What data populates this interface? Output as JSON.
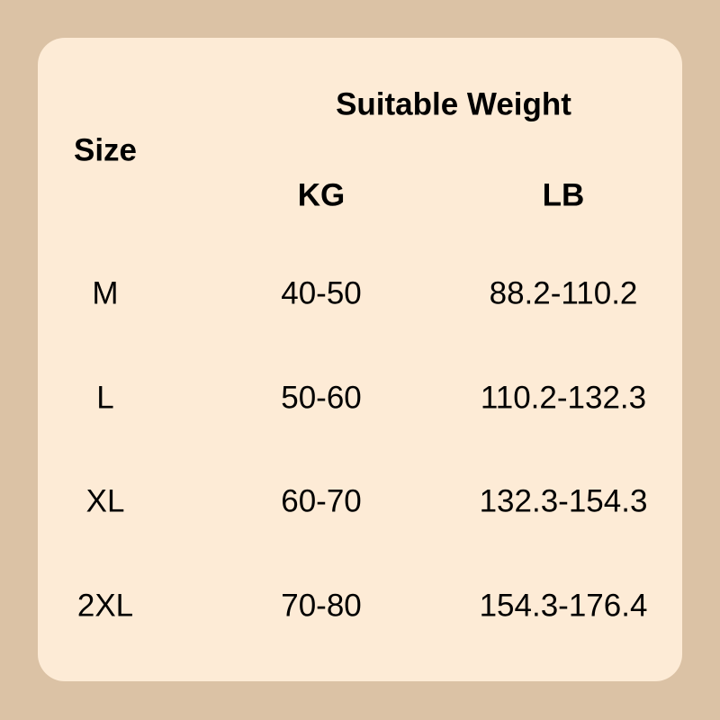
{
  "colors": {
    "background": "#dbc2a5",
    "card": "#fdebd6",
    "text": "#000000"
  },
  "header": {
    "size": "Size",
    "suitable_weight": "Suitable Weight",
    "kg": "KG",
    "lb": "LB"
  },
  "rows": [
    {
      "size": "M",
      "kg": "40-50",
      "lb": "88.2-110.2"
    },
    {
      "size": "L",
      "kg": "50-60",
      "lb": "110.2-132.3"
    },
    {
      "size": "XL",
      "kg": "60-70",
      "lb": "132.3-154.3"
    },
    {
      "size": "2XL",
      "kg": "70-80",
      "lb": "154.3-176.4"
    }
  ]
}
